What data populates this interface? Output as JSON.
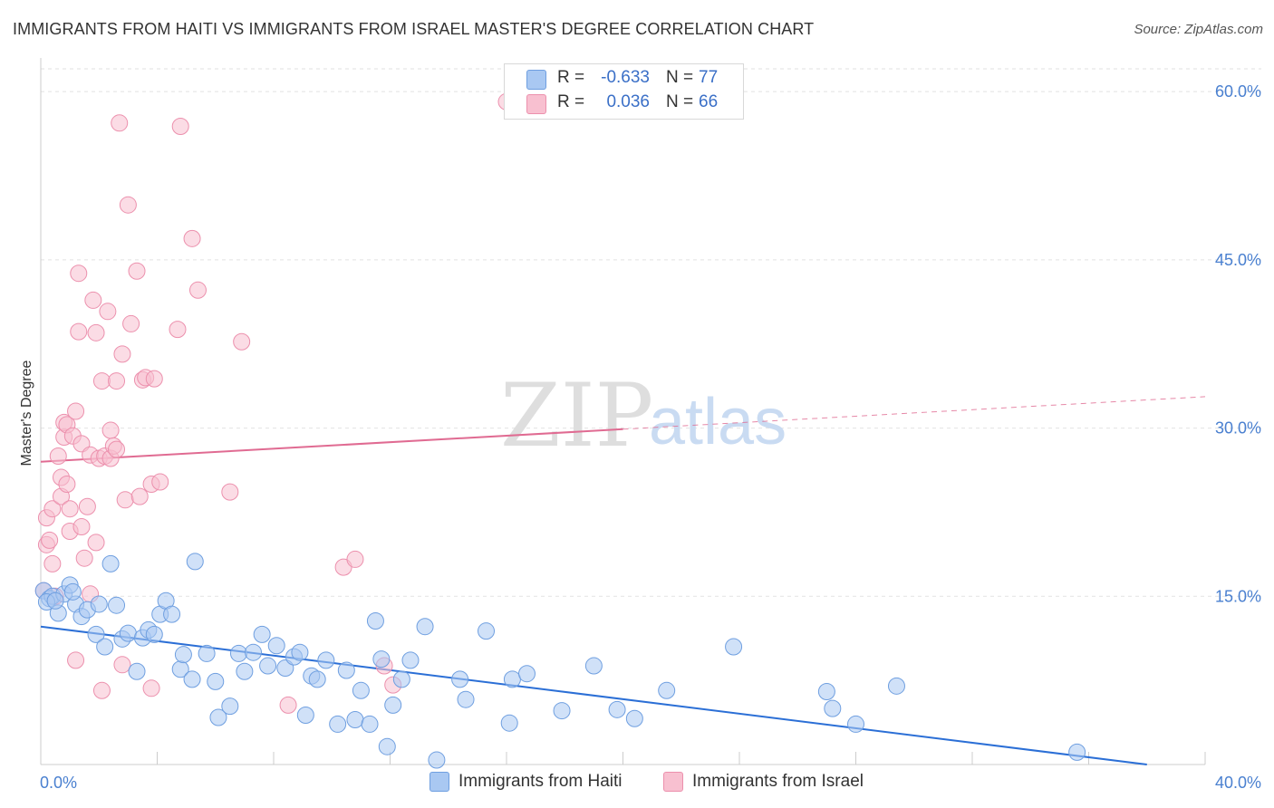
{
  "title": "IMMIGRANTS FROM HAITI VS IMMIGRANTS FROM ISRAEL MASTER'S DEGREE CORRELATION CHART",
  "source": "Source: ZipAtlas.com",
  "watermark": {
    "zip": "ZIP",
    "atlas": "atlas"
  },
  "legend": {
    "r_label": "R =",
    "n_label": "N =",
    "haiti": {
      "r": "-0.633",
      "n": "77"
    },
    "israel": {
      "r": "0.036",
      "n": "66"
    }
  },
  "colors": {
    "haiti_fill": "#a9c8f2",
    "haiti_stroke": "#6f9fe0",
    "haiti_line": "#2b6fd6",
    "israel_fill": "#f8c0d0",
    "israel_stroke": "#ec90ad",
    "israel_line": "#e06b92",
    "tick": "#4a80d0",
    "grid": "#e2e2e2"
  },
  "chart_data": {
    "type": "scatter",
    "title": "IMMIGRANTS FROM HAITI VS IMMIGRANTS FROM ISRAEL MASTER'S DEGREE CORRELATION CHART",
    "xlabel": "",
    "ylabel": "Master's Degree",
    "xlim": [
      0,
      40
    ],
    "ylim": [
      0,
      63
    ],
    "x_tick_labels": [
      "0.0%",
      "40.0%"
    ],
    "y_ticks": [
      15,
      30,
      45,
      60
    ],
    "y_tick_labels": [
      "15.0%",
      "30.0%",
      "45.0%",
      "60.0%"
    ],
    "grid": true,
    "legend_position": "bottom-center",
    "series": [
      {
        "name": "Immigrants from Haiti",
        "r": -0.633,
        "n": 77,
        "trend": {
          "x0": 0,
          "y0": 12.3,
          "x1": 38,
          "y1": 0
        },
        "points": [
          [
            0.1,
            15.5
          ],
          [
            0.3,
            14.8
          ],
          [
            0.4,
            15.0
          ],
          [
            0.6,
            13.5
          ],
          [
            0.8,
            15.2
          ],
          [
            1.0,
            16.0
          ],
          [
            1.2,
            14.3
          ],
          [
            1.4,
            13.2
          ],
          [
            1.6,
            13.8
          ],
          [
            1.9,
            11.6
          ],
          [
            2.2,
            10.5
          ],
          [
            2.4,
            17.9
          ],
          [
            2.6,
            14.2
          ],
          [
            2.8,
            11.2
          ],
          [
            3.0,
            11.7
          ],
          [
            3.3,
            8.3
          ],
          [
            3.5,
            11.3
          ],
          [
            3.7,
            12.0
          ],
          [
            3.9,
            11.6
          ],
          [
            4.1,
            13.4
          ],
          [
            4.3,
            14.6
          ],
          [
            4.5,
            13.4
          ],
          [
            4.8,
            8.5
          ],
          [
            4.9,
            9.8
          ],
          [
            5.2,
            7.6
          ],
          [
            5.3,
            18.1
          ],
          [
            5.7,
            9.9
          ],
          [
            6.0,
            7.4
          ],
          [
            6.1,
            4.2
          ],
          [
            6.5,
            5.2
          ],
          [
            6.8,
            9.9
          ],
          [
            7.0,
            8.3
          ],
          [
            7.3,
            10.0
          ],
          [
            7.6,
            11.6
          ],
          [
            7.8,
            8.8
          ],
          [
            8.1,
            10.6
          ],
          [
            8.4,
            8.6
          ],
          [
            8.7,
            9.6
          ],
          [
            8.9,
            10.0
          ],
          [
            9.1,
            4.4
          ],
          [
            9.3,
            7.9
          ],
          [
            9.5,
            7.6
          ],
          [
            9.8,
            9.3
          ],
          [
            10.2,
            3.6
          ],
          [
            10.5,
            8.4
          ],
          [
            10.8,
            4.0
          ],
          [
            11.0,
            6.6
          ],
          [
            11.3,
            3.6
          ],
          [
            11.5,
            12.8
          ],
          [
            11.7,
            9.4
          ],
          [
            11.9,
            1.6
          ],
          [
            12.1,
            5.3
          ],
          [
            12.4,
            7.6
          ],
          [
            12.7,
            9.3
          ],
          [
            13.2,
            12.3
          ],
          [
            13.6,
            0.4
          ],
          [
            14.4,
            7.6
          ],
          [
            14.6,
            5.8
          ],
          [
            15.3,
            11.9
          ],
          [
            16.1,
            3.7
          ],
          [
            16.2,
            7.6
          ],
          [
            16.7,
            8.1
          ],
          [
            17.9,
            4.8
          ],
          [
            19.0,
            8.8
          ],
          [
            19.8,
            4.9
          ],
          [
            20.4,
            4.1
          ],
          [
            21.5,
            6.6
          ],
          [
            23.8,
            10.5
          ],
          [
            27.0,
            6.5
          ],
          [
            27.2,
            5.0
          ],
          [
            28.0,
            3.6
          ],
          [
            29.4,
            7.0
          ],
          [
            35.6,
            1.1
          ],
          [
            0.2,
            14.5
          ],
          [
            0.5,
            14.6
          ],
          [
            1.1,
            15.4
          ],
          [
            2.0,
            14.3
          ]
        ]
      },
      {
        "name": "Immigrants from Israel",
        "r": 0.036,
        "n": 66,
        "trend": {
          "x0": 0,
          "y0": 27.0,
          "x1": 40,
          "y1": 32.8,
          "solid_until_x": 20
        },
        "points": [
          [
            0.1,
            15.5
          ],
          [
            0.2,
            19.6
          ],
          [
            0.2,
            22.0
          ],
          [
            0.3,
            20.0
          ],
          [
            0.4,
            17.9
          ],
          [
            0.4,
            22.8
          ],
          [
            0.5,
            15.0
          ],
          [
            0.6,
            27.5
          ],
          [
            0.7,
            25.6
          ],
          [
            0.7,
            23.9
          ],
          [
            0.8,
            29.2
          ],
          [
            0.8,
            30.5
          ],
          [
            0.9,
            25.0
          ],
          [
            0.9,
            30.3
          ],
          [
            1.0,
            20.8
          ],
          [
            1.0,
            22.8
          ],
          [
            1.1,
            29.3
          ],
          [
            1.2,
            31.5
          ],
          [
            1.3,
            38.6
          ],
          [
            1.3,
            43.8
          ],
          [
            1.4,
            28.6
          ],
          [
            1.4,
            21.2
          ],
          [
            1.5,
            18.4
          ],
          [
            1.6,
            23.0
          ],
          [
            1.7,
            27.6
          ],
          [
            1.7,
            15.2
          ],
          [
            1.8,
            41.4
          ],
          [
            1.9,
            38.5
          ],
          [
            1.9,
            19.8
          ],
          [
            2.0,
            27.3
          ],
          [
            2.1,
            34.2
          ],
          [
            2.2,
            27.5
          ],
          [
            2.3,
            40.4
          ],
          [
            2.4,
            29.8
          ],
          [
            2.4,
            27.3
          ],
          [
            2.5,
            28.4
          ],
          [
            2.6,
            28.1
          ],
          [
            2.6,
            34.2
          ],
          [
            2.7,
            57.2
          ],
          [
            2.8,
            36.6
          ],
          [
            2.8,
            8.9
          ],
          [
            2.9,
            23.6
          ],
          [
            3.0,
            49.9
          ],
          [
            3.1,
            39.3
          ],
          [
            3.3,
            44.0
          ],
          [
            3.4,
            23.9
          ],
          [
            3.5,
            34.3
          ],
          [
            3.6,
            34.5
          ],
          [
            3.8,
            25.0
          ],
          [
            3.9,
            34.4
          ],
          [
            4.1,
            25.2
          ],
          [
            4.7,
            38.8
          ],
          [
            4.8,
            56.9
          ],
          [
            5.2,
            46.9
          ],
          [
            5.4,
            42.3
          ],
          [
            6.5,
            24.3
          ],
          [
            6.9,
            37.7
          ],
          [
            8.5,
            5.3
          ],
          [
            10.4,
            17.6
          ],
          [
            10.8,
            18.3
          ],
          [
            11.8,
            8.8
          ],
          [
            12.1,
            7.1
          ],
          [
            16.0,
            59.1
          ],
          [
            1.2,
            9.3
          ],
          [
            2.1,
            6.6
          ],
          [
            3.8,
            6.8
          ]
        ]
      }
    ]
  }
}
